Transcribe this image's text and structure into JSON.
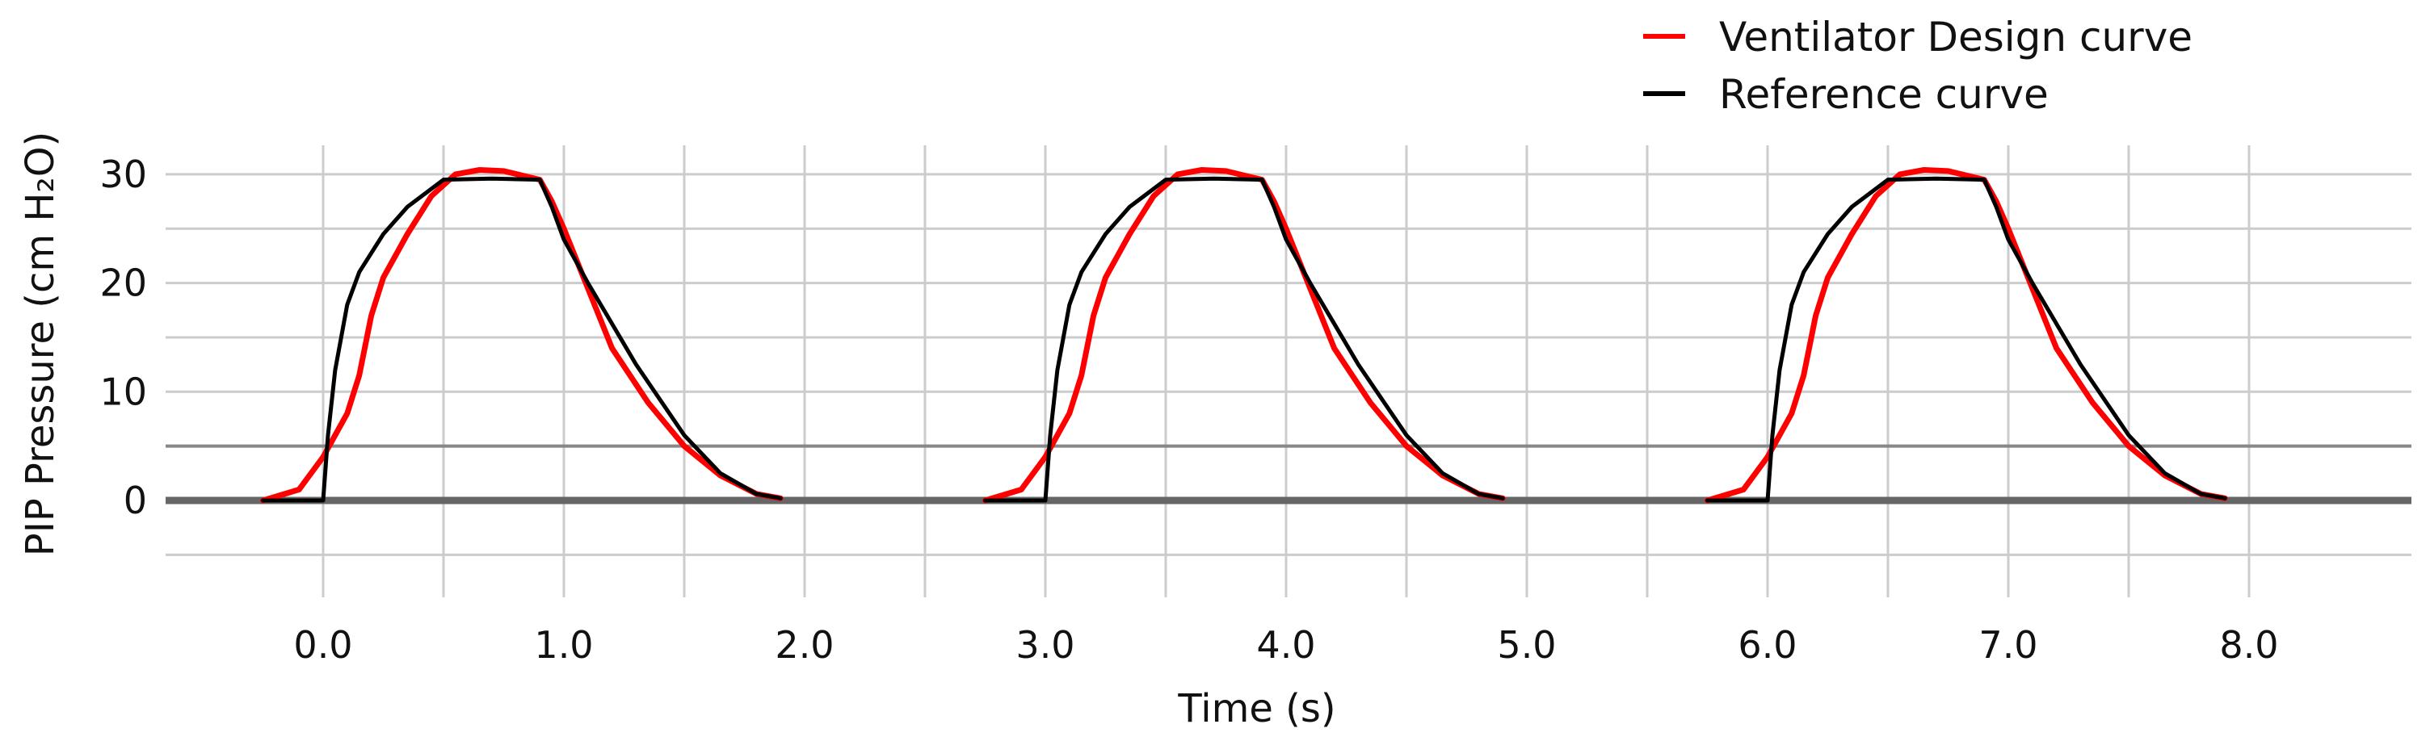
{
  "chart_data": {
    "type": "line",
    "xlabel": "Time (s)",
    "ylabel": "PIP Pressure (cm H₂O)",
    "xlim": [
      -0.55,
      8.65
    ],
    "ylim": [
      -4.5,
      33.5
    ],
    "x_ticks": [
      0.0,
      1.0,
      2.0,
      3.0,
      4.0,
      5.0,
      6.0,
      7.0,
      8.0
    ],
    "x_tick_labels": [
      "0.0",
      "1.0",
      "2.0",
      "3.0",
      "4.0",
      "5.0",
      "6.0",
      "7.0",
      "8.0"
    ],
    "x_gridlines": [
      0.0,
      0.5,
      1.0,
      1.5,
      2.0,
      2.5,
      3.0,
      3.5,
      4.0,
      4.5,
      5.0,
      5.5,
      6.0,
      6.5,
      7.0,
      7.5,
      8.0
    ],
    "y_ticks": [
      0,
      10,
      20,
      30
    ],
    "y_tick_labels": [
      "0",
      "10",
      "20",
      "30"
    ],
    "y_gridlines": [
      -5,
      0,
      5,
      10,
      15,
      20,
      25,
      30
    ],
    "grid": true,
    "legend_position": "top-right",
    "reference_lines": [
      {
        "y": 0,
        "color": "#666666",
        "weight": "thick"
      },
      {
        "y": 5,
        "color": "#888888",
        "weight": "thin"
      }
    ],
    "series": [
      {
        "name": "Ventilator Design curve",
        "color": "#ff0000",
        "x": [
          -0.25,
          -0.1,
          0.0,
          0.1,
          0.15,
          0.2,
          0.25,
          0.35,
          0.45,
          0.55,
          0.65,
          0.75,
          0.9,
          0.95,
          1.0,
          1.1,
          1.2,
          1.35,
          1.5,
          1.65,
          1.8,
          1.9,
          2.75,
          2.9,
          3.0,
          3.1,
          3.15,
          3.2,
          3.25,
          3.35,
          3.45,
          3.55,
          3.65,
          3.75,
          3.9,
          3.95,
          4.0,
          4.1,
          4.2,
          4.35,
          4.5,
          4.65,
          4.8,
          4.9,
          5.75,
          5.9,
          6.0,
          6.1,
          6.15,
          6.2,
          6.25,
          6.35,
          6.45,
          6.55,
          6.65,
          6.75,
          6.9,
          6.95,
          7.0,
          7.1,
          7.2,
          7.35,
          7.5,
          7.65,
          7.8,
          7.9
        ],
        "y": [
          0.0,
          1.0,
          4.0,
          8.0,
          11.5,
          17.0,
          20.5,
          24.5,
          28.0,
          30.0,
          30.4,
          30.3,
          29.5,
          27.5,
          25.0,
          19.5,
          14.0,
          9.0,
          5.0,
          2.3,
          0.6,
          0.2,
          0.0,
          1.0,
          4.0,
          8.0,
          11.5,
          17.0,
          20.5,
          24.5,
          28.0,
          30.0,
          30.4,
          30.3,
          29.5,
          27.5,
          25.0,
          19.5,
          14.0,
          9.0,
          5.0,
          2.3,
          0.6,
          0.2,
          0.0,
          1.0,
          4.0,
          8.0,
          11.5,
          17.0,
          20.5,
          24.5,
          28.0,
          30.0,
          30.4,
          30.3,
          29.5,
          27.5,
          25.0,
          19.5,
          14.0,
          9.0,
          5.0,
          2.3,
          0.6,
          0.2
        ]
      },
      {
        "name": "Reference curve",
        "color": "#000000",
        "x": [
          -0.25,
          -0.1,
          0.0,
          0.02,
          0.05,
          0.1,
          0.15,
          0.25,
          0.35,
          0.5,
          0.7,
          0.9,
          0.95,
          1.0,
          1.1,
          1.3,
          1.5,
          1.65,
          1.8,
          1.9,
          2.75,
          2.9,
          3.0,
          3.02,
          3.05,
          3.1,
          3.15,
          3.25,
          3.35,
          3.5,
          3.7,
          3.9,
          3.95,
          4.0,
          4.1,
          4.3,
          4.5,
          4.65,
          4.8,
          4.9,
          5.75,
          5.9,
          6.0,
          6.02,
          6.05,
          6.1,
          6.15,
          6.25,
          6.35,
          6.5,
          6.7,
          6.9,
          6.95,
          7.0,
          7.1,
          7.3,
          7.5,
          7.65,
          7.8,
          7.9
        ],
        "y": [
          0.0,
          0.0,
          0.0,
          6.0,
          12.0,
          18.0,
          21.0,
          24.5,
          27.0,
          29.5,
          29.6,
          29.5,
          27.0,
          24.0,
          20.0,
          12.5,
          6.0,
          2.5,
          0.6,
          0.2,
          0.0,
          0.0,
          0.0,
          6.0,
          12.0,
          18.0,
          21.0,
          24.5,
          27.0,
          29.5,
          29.6,
          29.5,
          27.0,
          24.0,
          20.0,
          12.5,
          6.0,
          2.5,
          0.6,
          0.2,
          0.0,
          0.0,
          0.0,
          6.0,
          12.0,
          18.0,
          21.0,
          24.5,
          27.0,
          29.5,
          29.6,
          29.5,
          27.0,
          24.0,
          20.0,
          12.5,
          6.0,
          2.5,
          0.6,
          0.2
        ]
      }
    ]
  }
}
